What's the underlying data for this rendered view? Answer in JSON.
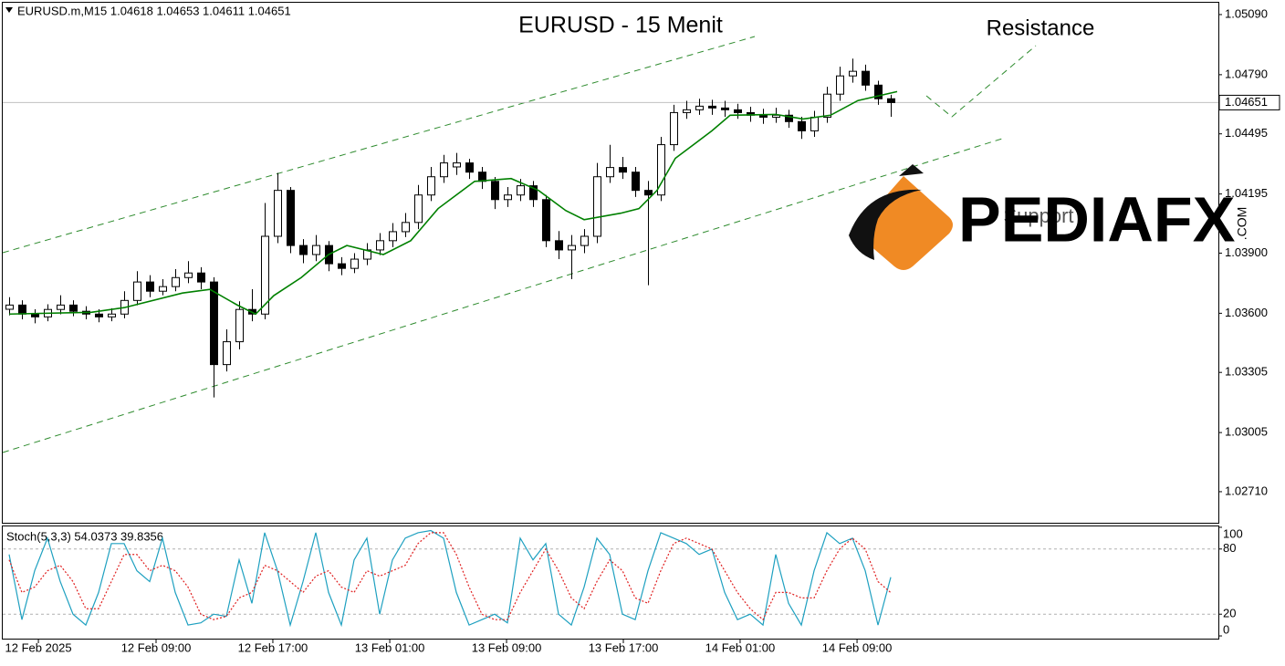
{
  "chart_data": [
    {
      "type": "candlestick",
      "title": "EURUSD - 15 Menit",
      "header": "EURUSD.m,M15  1.04618 1.04653 1.04611 1.04651",
      "annotations": [
        "Resistance",
        "Support"
      ],
      "bull_color": "#ffffff",
      "bear_color": "#000000",
      "outline_color": "#000000",
      "open": [
        1.0362,
        1.03641,
        1.03596,
        1.03582,
        1.03619,
        1.03641,
        1.0361,
        1.03596,
        1.03582,
        1.03596,
        1.03664,
        1.03756,
        1.0371,
        1.03733,
        1.03778,
        1.03801,
        1.03756,
        1.03344,
        1.03458,
        1.03619,
        1.03596,
        1.03984,
        1.04213,
        1.03938,
        1.03893,
        1.03938,
        1.03847,
        1.03824,
        1.0387,
        1.03916,
        1.03962,
        1.04007,
        1.04053,
        1.0419,
        1.04281,
        1.0433,
        1.0435,
        1.04304,
        1.04258,
        1.04167,
        1.0419,
        1.04236,
        1.04167,
        1.03962,
        1.03916,
        1.03938,
        1.03984,
        1.04281,
        1.04327,
        1.04304,
        1.04213,
        1.0419,
        1.04441,
        1.04601,
        1.04615,
        1.04633,
        1.04624,
        1.04615,
        1.04601,
        1.04588,
        1.04578,
        1.04588,
        1.04556,
        1.0451,
        1.04578,
        1.04693,
        1.04784,
        1.04807,
        1.04738,
        1.0467
      ],
      "high": [
        1.0368,
        1.03665,
        1.0362,
        1.03645,
        1.0369,
        1.03665,
        1.03635,
        1.0362,
        1.03625,
        1.0371,
        1.0381,
        1.0379,
        1.0377,
        1.0382,
        1.0386,
        1.0383,
        1.0378,
        1.0352,
        1.0366,
        1.0372,
        1.0415,
        1.043,
        1.0423,
        1.0397,
        1.0399,
        1.0396,
        1.0388,
        1.039,
        1.0395,
        1.04,
        1.0405,
        1.041,
        1.0424,
        1.0433,
        1.0439,
        1.044,
        1.0437,
        1.0433,
        1.0428,
        1.0423,
        1.0427,
        1.0426,
        1.0419,
        1.0401,
        1.0399,
        1.0402,
        1.0435,
        1.0444,
        1.0438,
        1.0433,
        1.0426,
        1.0448,
        1.0464,
        1.0466,
        1.0467,
        1.04665,
        1.0466,
        1.04645,
        1.0463,
        1.0462,
        1.04625,
        1.04615,
        1.0458,
        1.0461,
        1.0473,
        1.0483,
        1.0487,
        1.0484,
        1.0476,
        1.0469
      ],
      "low": [
        1.0359,
        1.0357,
        1.0355,
        1.0356,
        1.03595,
        1.03585,
        1.0357,
        1.03555,
        1.0356,
        1.03575,
        1.0364,
        1.0368,
        1.0369,
        1.0371,
        1.0375,
        1.0372,
        1.0318,
        1.0331,
        1.0342,
        1.0356,
        1.0357,
        1.0395,
        1.039,
        1.0385,
        1.0386,
        1.0381,
        1.0379,
        1.038,
        1.0384,
        1.0389,
        1.0393,
        1.0398,
        1.0402,
        1.0416,
        1.0425,
        1.0429,
        1.0427,
        1.0422,
        1.0412,
        1.0413,
        1.0416,
        1.0413,
        1.0393,
        1.0387,
        1.0377,
        1.039,
        1.0395,
        1.0425,
        1.0427,
        1.0418,
        1.0374,
        1.0416,
        1.0441,
        1.0457,
        1.0459,
        1.0459,
        1.0458,
        1.0457,
        1.04555,
        1.04545,
        1.0455,
        1.04525,
        1.0447,
        1.0448,
        1.0455,
        1.0466,
        1.0475,
        1.0471,
        1.0464,
        1.0458
      ],
      "close": [
        1.03641,
        1.03596,
        1.03582,
        1.03619,
        1.03641,
        1.0361,
        1.03596,
        1.03582,
        1.03596,
        1.03664,
        1.03756,
        1.0371,
        1.03733,
        1.03778,
        1.03801,
        1.03756,
        1.03344,
        1.03458,
        1.03619,
        1.03596,
        1.03984,
        1.04213,
        1.03938,
        1.03893,
        1.03938,
        1.03847,
        1.03824,
        1.0387,
        1.03916,
        1.03962,
        1.04007,
        1.04053,
        1.0419,
        1.04281,
        1.0435,
        1.0435,
        1.04304,
        1.04258,
        1.04167,
        1.0419,
        1.04236,
        1.04167,
        1.03962,
        1.03916,
        1.03938,
        1.03984,
        1.04281,
        1.04327,
        1.04304,
        1.04213,
        1.0419,
        1.04441,
        1.04601,
        1.04615,
        1.04633,
        1.04624,
        1.04615,
        1.04601,
        1.04588,
        1.04578,
        1.04588,
        1.04556,
        1.0451,
        1.04578,
        1.04693,
        1.04784,
        1.04807,
        1.04738,
        1.0467,
        1.04651
      ],
      "ma": {
        "color": "#008000",
        "x": [
          0.5,
          6.93,
          9.5,
          14.07,
          16.21,
          18.36,
          19.79,
          21.21,
          23.36,
          25.5,
          26.93,
          29.79,
          31.93,
          34.07,
          36.93,
          39.79,
          41.93,
          44.07,
          45.5,
          48.36,
          49.79,
          51.21,
          52.64,
          55.5,
          56.93,
          60.5,
          62.64,
          64.79,
          66.93,
          70
        ],
        "values": [
          1.03596,
          1.03605,
          1.03628,
          1.03701,
          1.03719,
          1.03641,
          1.03596,
          1.03688,
          1.03778,
          1.03893,
          1.03938,
          1.03893,
          1.03962,
          1.04122,
          1.04258,
          1.04272,
          1.04213,
          1.04112,
          1.04067,
          1.04099,
          1.04122,
          1.04213,
          1.04373,
          1.0451,
          1.04588,
          1.04592,
          1.04569,
          1.04588,
          1.04661,
          1.04706
        ]
      },
      "current_price": 1.04651,
      "ylim": [
        1.02555,
        1.05149
      ],
      "yticks": [
        {
          "value": 1.0509,
          "label": "1.05090"
        },
        {
          "value": 1.0479,
          "label": "1.04790"
        },
        1.04495,
        1.04195,
        {
          "value": 1.039,
          "label": "1.03900"
        },
        {
          "value": 1.036,
          "label": "1.03600"
        },
        1.03305,
        1.03005,
        {
          "value": 1.0271,
          "label": "1.02710"
        }
      ],
      "xlim": [
        0,
        95.14
      ],
      "xticks": [
        {
          "value": 2.79,
          "label": "12 Feb 2025"
        },
        {
          "value": 12,
          "label": "12 Feb 09:00"
        },
        {
          "value": 21.14,
          "label": "12 Feb 17:00"
        },
        {
          "value": 30.29,
          "label": "13 Feb 01:00"
        },
        {
          "value": 39.43,
          "label": "13 Feb 09:00"
        },
        {
          "value": 48.57,
          "label": "13 Feb 17:00"
        },
        {
          "value": 57.71,
          "label": "14 Feb 01:00"
        },
        {
          "value": 66.86,
          "label": "14 Feb 09:00"
        }
      ]
    },
    {
      "type": "line",
      "title": "Stoch(5,3,3) 54.0373 39.8356",
      "series": [
        {
          "color": "#1ea0c0",
          "values": [
            75,
            15,
            60,
            90,
            50,
            20,
            10,
            40,
            85,
            85,
            60,
            50,
            90,
            40,
            10,
            12,
            20,
            18,
            70,
            30,
            95,
            60,
            10,
            50,
            95,
            40,
            10,
            70,
            90,
            20,
            70,
            90,
            95,
            97,
            90,
            40,
            10,
            15,
            20,
            12,
            90,
            70,
            85,
            20,
            10,
            45,
            90,
            75,
            20,
            15,
            60,
            95,
            90,
            85,
            75,
            80,
            40,
            15,
            20,
            10,
            75,
            30,
            10,
            60,
            95,
            85,
            90,
            60,
            10,
            54.0373
          ]
        },
        {
          "color": "#e02020",
          "values": [
            70,
            40,
            45,
            60,
            65,
            50,
            25,
            25,
            50,
            75,
            75,
            60,
            65,
            60,
            45,
            20,
            15,
            18,
            35,
            40,
            65,
            60,
            50,
            40,
            55,
            60,
            45,
            40,
            60,
            55,
            60,
            65,
            85,
            95,
            95,
            75,
            45,
            20,
            15,
            15,
            40,
            60,
            80,
            60,
            35,
            25,
            50,
            70,
            60,
            35,
            30,
            60,
            85,
            90,
            85,
            80,
            60,
            40,
            25,
            15,
            40,
            40,
            35,
            35,
            60,
            80,
            90,
            80,
            50,
            39.8356
          ]
        }
      ],
      "ylim": [
        -2.5,
        100.8
      ],
      "yticks": [
        100,
        80,
        20,
        0
      ],
      "levels": [
        80,
        20
      ]
    }
  ],
  "watermark": {
    "text": "PEDIAFX",
    "suffix": ".COM"
  }
}
